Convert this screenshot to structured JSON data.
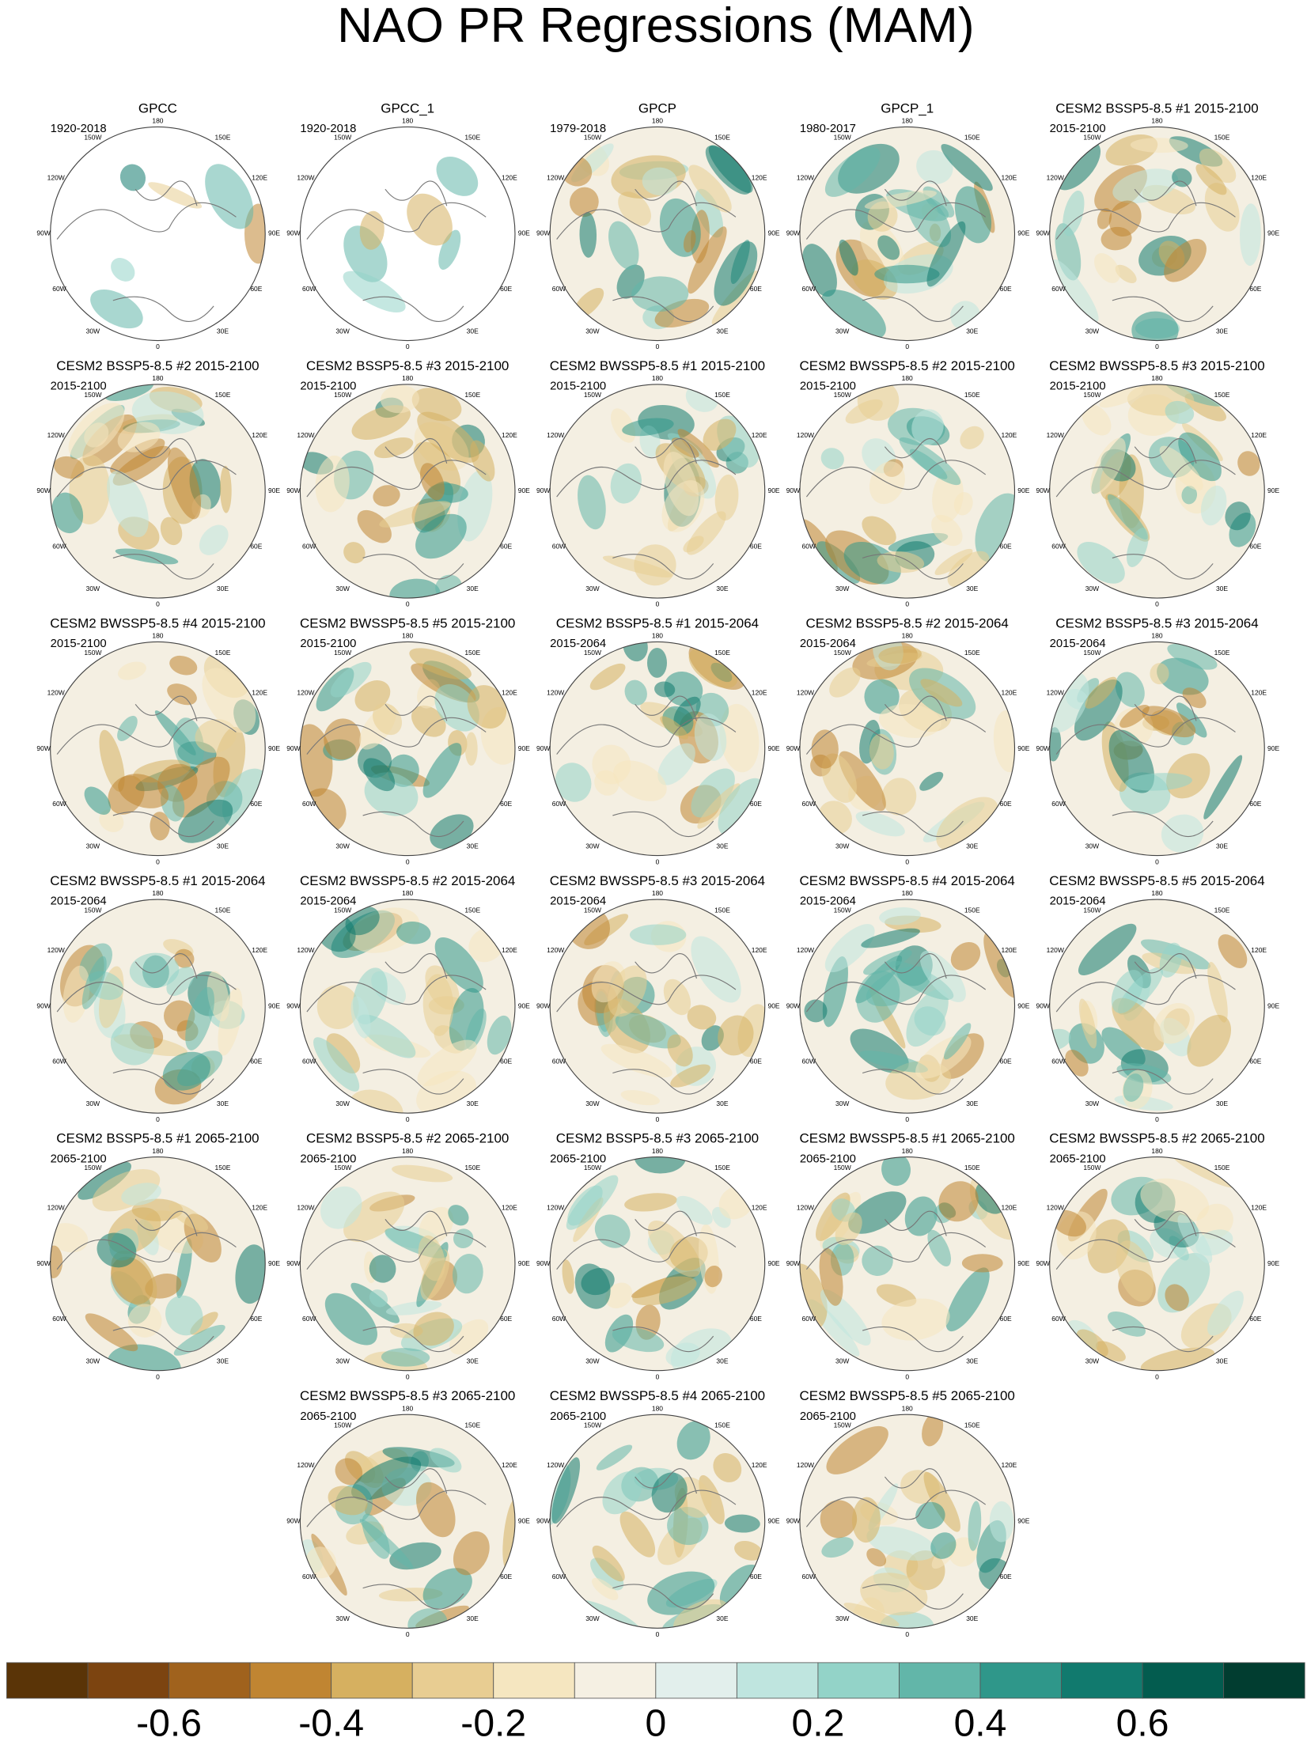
{
  "title": "NAO PR Regressions (MAM)",
  "longitude_labels": [
    "180",
    "150E",
    "120E",
    "90E",
    "60E",
    "30E",
    "0",
    "30W",
    "60W",
    "90W",
    "120W",
    "150W"
  ],
  "panels": [
    {
      "title": "GPCC",
      "period": "1920-2018"
    },
    {
      "title": "GPCC_1",
      "period": "1920-2018"
    },
    {
      "title": "GPCP",
      "period": "1979-2018"
    },
    {
      "title": "GPCP_1",
      "period": "1980-2017"
    },
    {
      "title": "CESM2 BSSP5-8.5 #1 2015-2100",
      "period": "2015-2100"
    },
    {
      "title": "CESM2 BSSP5-8.5 #2 2015-2100",
      "period": "2015-2100"
    },
    {
      "title": "CESM2 BSSP5-8.5 #3 2015-2100",
      "period": "2015-2100"
    },
    {
      "title": "CESM2 BWSSP5-8.5 #1 2015-2100",
      "period": "2015-2100"
    },
    {
      "title": "CESM2 BWSSP5-8.5 #2 2015-2100",
      "period": "2015-2100"
    },
    {
      "title": "CESM2 BWSSP5-8.5 #3 2015-2100",
      "period": "2015-2100"
    },
    {
      "title": "CESM2 BWSSP5-8.5 #4 2015-2100",
      "period": "2015-2100"
    },
    {
      "title": "CESM2 BWSSP5-8.5 #5 2015-2100",
      "period": "2015-2100"
    },
    {
      "title": "CESM2 BSSP5-8.5 #1 2015-2064",
      "period": "2015-2064"
    },
    {
      "title": "CESM2 BSSP5-8.5 #2 2015-2064",
      "period": "2015-2064"
    },
    {
      "title": "CESM2 BSSP5-8.5 #3 2015-2064",
      "period": "2015-2064"
    },
    {
      "title": "CESM2 BWSSP5-8.5 #1 2015-2064",
      "period": "2015-2064"
    },
    {
      "title": "CESM2 BWSSP5-8.5 #2 2015-2064",
      "period": "2015-2064"
    },
    {
      "title": "CESM2 BWSSP5-8.5 #3 2015-2064",
      "period": "2015-2064"
    },
    {
      "title": "CESM2 BWSSP5-8.5 #4 2015-2064",
      "period": "2015-2064"
    },
    {
      "title": "CESM2 BWSSP5-8.5 #5 2015-2064",
      "period": "2015-2064"
    },
    {
      "title": "CESM2 BSSP5-8.5 #1 2065-2100",
      "period": "2065-2100"
    },
    {
      "title": "CESM2 BSSP5-8.5 #2 2065-2100",
      "period": "2065-2100"
    },
    {
      "title": "CESM2 BSSP5-8.5 #3 2065-2100",
      "period": "2065-2100"
    },
    {
      "title": "CESM2 BWSSP5-8.5 #1 2065-2100",
      "period": "2065-2100"
    },
    {
      "title": "CESM2 BWSSP5-8.5 #2 2065-2100",
      "period": "2065-2100"
    },
    {
      "title": "CESM2 BWSSP5-8.5 #3 2065-2100",
      "period": "2065-2100"
    },
    {
      "title": "CESM2 BWSSP5-8.5 #4 2065-2100",
      "period": "2065-2100"
    },
    {
      "title": "CESM2 BWSSP5-8.5 #5 2065-2100",
      "period": "2065-2100"
    }
  ],
  "colorbar": {
    "colors": [
      "#5a3407",
      "#7c4410",
      "#a0621d",
      "#c08532",
      "#d6b060",
      "#e8cd92",
      "#f5e6c0",
      "#f5f0e3",
      "#e2efec",
      "#bfe5df",
      "#93d3c8",
      "#62b6a9",
      "#2f978a",
      "#117a6e",
      "#035c4f",
      "#013d30"
    ],
    "labels": [
      "-0.6",
      "-0.4",
      "-0.2",
      "0",
      "0.2",
      "0.4",
      "0.6"
    ]
  }
}
